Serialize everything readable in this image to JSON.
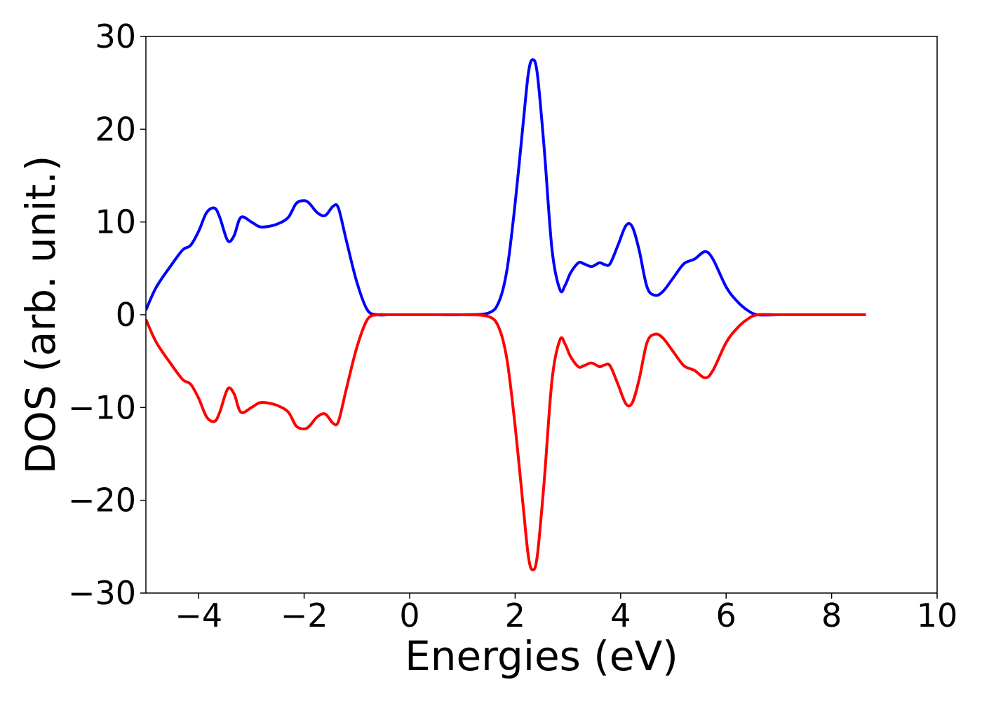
{
  "chart_data": {
    "type": "line",
    "title": "",
    "xlabel": "Energies (eV)",
    "ylabel": "DOS (arb. unit.)",
    "xlim": [
      -5,
      10
    ],
    "ylim": [
      -30,
      30
    ],
    "x_ticks": [
      -4,
      -2,
      0,
      2,
      4,
      6,
      8,
      10
    ],
    "y_ticks": [
      -30,
      -20,
      -10,
      0,
      10,
      20,
      30
    ],
    "x_tick_labels": [
      "−4",
      "−2",
      "0",
      "2",
      "4",
      "6",
      "8",
      "10"
    ],
    "y_tick_labels": [
      "−30",
      "−20",
      "−10",
      "0",
      "10",
      "20",
      "30"
    ],
    "grid": false,
    "legend": "none",
    "series": [
      {
        "color": "#0000ff",
        "x": [
          -5.0,
          -4.8,
          -4.5,
          -4.3,
          -4.15,
          -4.0,
          -3.85,
          -3.7,
          -3.6,
          -3.45,
          -3.33,
          -3.2,
          -3.0,
          -2.85,
          -2.7,
          -2.5,
          -2.3,
          -2.15,
          -2.0,
          -1.9,
          -1.75,
          -1.6,
          -1.45,
          -1.35,
          -1.2,
          -1.0,
          -0.8,
          -0.6,
          -0.4,
          0.0,
          0.5,
          1.0,
          1.5,
          1.7,
          1.85,
          2.0,
          2.15,
          2.25,
          2.33,
          2.42,
          2.55,
          2.7,
          2.85,
          2.95,
          3.05,
          3.2,
          3.3,
          3.45,
          3.6,
          3.7,
          3.8,
          3.95,
          4.1,
          4.22,
          4.35,
          4.5,
          4.65,
          4.8,
          5.0,
          5.2,
          5.4,
          5.6,
          5.75,
          6.0,
          6.2,
          6.4,
          6.6,
          7.0,
          7.5,
          8.0,
          8.5,
          8.65
        ],
        "values": [
          0.5,
          3.0,
          5.5,
          7.0,
          7.5,
          9.0,
          11.0,
          11.5,
          10.5,
          8.0,
          8.5,
          10.5,
          10.0,
          9.5,
          9.5,
          9.8,
          10.5,
          12.0,
          12.3,
          12.0,
          11.0,
          10.7,
          11.7,
          11.5,
          8.0,
          3.5,
          0.5,
          0.0,
          0.0,
          0.0,
          0.0,
          0.0,
          0.2,
          1.5,
          5.0,
          12.0,
          20.5,
          26.0,
          27.5,
          26.0,
          18.0,
          7.0,
          2.7,
          3.2,
          4.5,
          5.6,
          5.5,
          5.2,
          5.6,
          5.4,
          5.5,
          7.5,
          9.6,
          9.5,
          7.0,
          3.0,
          2.1,
          2.5,
          4.0,
          5.5,
          6.0,
          6.8,
          6.0,
          3.0,
          1.5,
          0.5,
          0.0,
          0.0,
          0.0,
          0.0,
          0.0,
          0.0
        ]
      },
      {
        "color": "#ff0000",
        "x": [
          -5.0,
          -4.8,
          -4.5,
          -4.3,
          -4.15,
          -4.0,
          -3.85,
          -3.7,
          -3.6,
          -3.45,
          -3.33,
          -3.2,
          -3.0,
          -2.85,
          -2.7,
          -2.5,
          -2.3,
          -2.15,
          -2.0,
          -1.9,
          -1.75,
          -1.6,
          -1.45,
          -1.35,
          -1.2,
          -1.0,
          -0.8,
          -0.6,
          -0.4,
          0.0,
          0.5,
          1.0,
          1.5,
          1.7,
          1.85,
          2.0,
          2.15,
          2.25,
          2.33,
          2.42,
          2.55,
          2.7,
          2.85,
          2.95,
          3.05,
          3.2,
          3.3,
          3.45,
          3.6,
          3.7,
          3.8,
          3.95,
          4.1,
          4.22,
          4.35,
          4.5,
          4.65,
          4.8,
          5.0,
          5.2,
          5.4,
          5.6,
          5.75,
          6.0,
          6.2,
          6.4,
          6.6,
          7.0,
          7.5,
          8.0,
          8.5,
          8.65
        ],
        "values": [
          -0.5,
          -3.0,
          -5.5,
          -7.0,
          -7.5,
          -9.0,
          -11.0,
          -11.5,
          -10.5,
          -8.0,
          -8.5,
          -10.5,
          -10.0,
          -9.5,
          -9.5,
          -9.8,
          -10.5,
          -12.0,
          -12.3,
          -12.0,
          -11.0,
          -10.7,
          -11.7,
          -11.5,
          -8.0,
          -3.5,
          -0.5,
          0.0,
          0.0,
          0.0,
          0.0,
          0.0,
          -0.2,
          -1.5,
          -5.0,
          -12.0,
          -20.5,
          -26.0,
          -27.5,
          -26.0,
          -18.0,
          -7.0,
          -2.7,
          -3.2,
          -4.5,
          -5.6,
          -5.5,
          -5.2,
          -5.6,
          -5.4,
          -5.5,
          -7.5,
          -9.6,
          -9.5,
          -7.0,
          -3.0,
          -2.1,
          -2.5,
          -4.0,
          -5.5,
          -6.0,
          -6.8,
          -6.0,
          -3.0,
          -1.5,
          -0.5,
          0.0,
          0.0,
          0.0,
          0.0,
          0.0,
          0.0
        ]
      }
    ]
  }
}
